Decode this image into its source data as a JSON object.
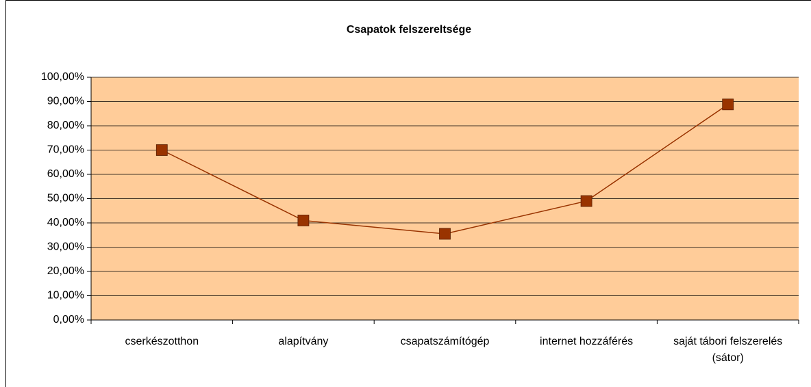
{
  "chart_data": {
    "type": "line",
    "title": "Csapatok felszereltsége",
    "categories": [
      "cserkészotthon",
      "alapítvány",
      "csapatszámítógép",
      "internet hozzáférés",
      "saját tábori felszerelés (sátor)"
    ],
    "series": [
      {
        "name": "Csapatok felszereltsége",
        "color": "#993300",
        "values": [
          70,
          41,
          35.5,
          49,
          88.8
        ]
      }
    ],
    "ylim": [
      0,
      100
    ],
    "yticks": [
      {
        "value": 0,
        "label": "0,00%"
      },
      {
        "value": 10,
        "label": "10,00%"
      },
      {
        "value": 20,
        "label": "20,00%"
      },
      {
        "value": 30,
        "label": "30,00%"
      },
      {
        "value": 40,
        "label": "40,00%"
      },
      {
        "value": 50,
        "label": "50,00%"
      },
      {
        "value": 60,
        "label": "60,00%"
      },
      {
        "value": 70,
        "label": "70,00%"
      },
      {
        "value": 80,
        "label": "80,00%"
      },
      {
        "value": 90,
        "label": "90,00%"
      },
      {
        "value": 100,
        "label": "100,00%"
      }
    ],
    "grid": true,
    "plot_background": "#ffcc99"
  }
}
